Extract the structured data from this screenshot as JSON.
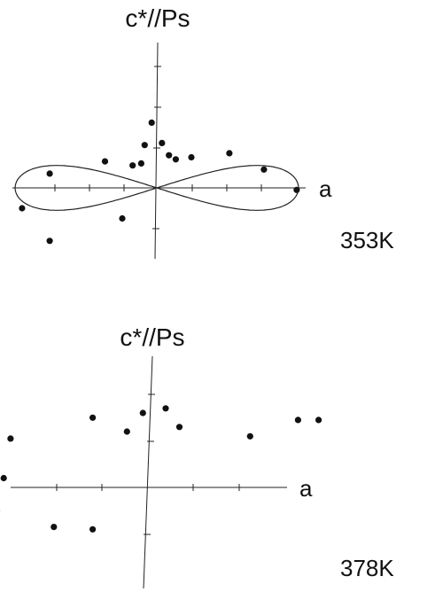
{
  "chart_data": [
    {
      "type": "scatter",
      "title": "",
      "xlabel": "a",
      "ylabel": "c*//Ps",
      "temperature_label": "353K",
      "xlim": [
        -4,
        4
      ],
      "ylim": [
        -2.3,
        4.1
      ],
      "grid": false,
      "points": [
        {
          "x": -3.9,
          "y": -0.5
        },
        {
          "x": -3.1,
          "y": 0.35
        },
        {
          "x": -3.1,
          "y": -1.3
        },
        {
          "x": -1.5,
          "y": 0.65
        },
        {
          "x": -1.0,
          "y": -0.75
        },
        {
          "x": -0.7,
          "y": 0.55
        },
        {
          "x": -0.45,
          "y": 0.6
        },
        {
          "x": -0.35,
          "y": 1.05
        },
        {
          "x": -0.15,
          "y": 1.6
        },
        {
          "x": 0.15,
          "y": 1.1
        },
        {
          "x": 0.35,
          "y": 0.8
        },
        {
          "x": 0.55,
          "y": 0.7
        },
        {
          "x": 1.0,
          "y": 0.75
        },
        {
          "x": 2.1,
          "y": 0.85
        },
        {
          "x": 3.1,
          "y": 0.45
        },
        {
          "x": 4.05,
          "y": -0.05
        }
      ],
      "fit_curve": {
        "shape": "figure-eight",
        "amplitude_x": 4.1,
        "amplitude_y": 0.55
      }
    },
    {
      "type": "scatter",
      "title": "",
      "xlabel": "a",
      "ylabel": "c*//Ps",
      "temperature_label": "378K",
      "xlim": [
        -4,
        4
      ],
      "ylim": [
        -2.5,
        3.8
      ],
      "grid": false,
      "points": [
        {
          "x": -3.2,
          "y": 0.2
        },
        {
          "x": -3.05,
          "y": 1.05
        },
        {
          "x": -3.35,
          "y": -0.5
        },
        {
          "x": -2.1,
          "y": -0.85
        },
        {
          "x": -1.25,
          "y": -0.9
        },
        {
          "x": -1.25,
          "y": 1.5
        },
        {
          "x": -0.5,
          "y": 1.2
        },
        {
          "x": -0.15,
          "y": 1.6
        },
        {
          "x": 0.35,
          "y": 1.7
        },
        {
          "x": 0.65,
          "y": 1.3
        },
        {
          "x": 2.2,
          "y": 1.1
        },
        {
          "x": 3.25,
          "y": 1.45
        },
        {
          "x": 3.7,
          "y": 1.45
        }
      ]
    }
  ]
}
